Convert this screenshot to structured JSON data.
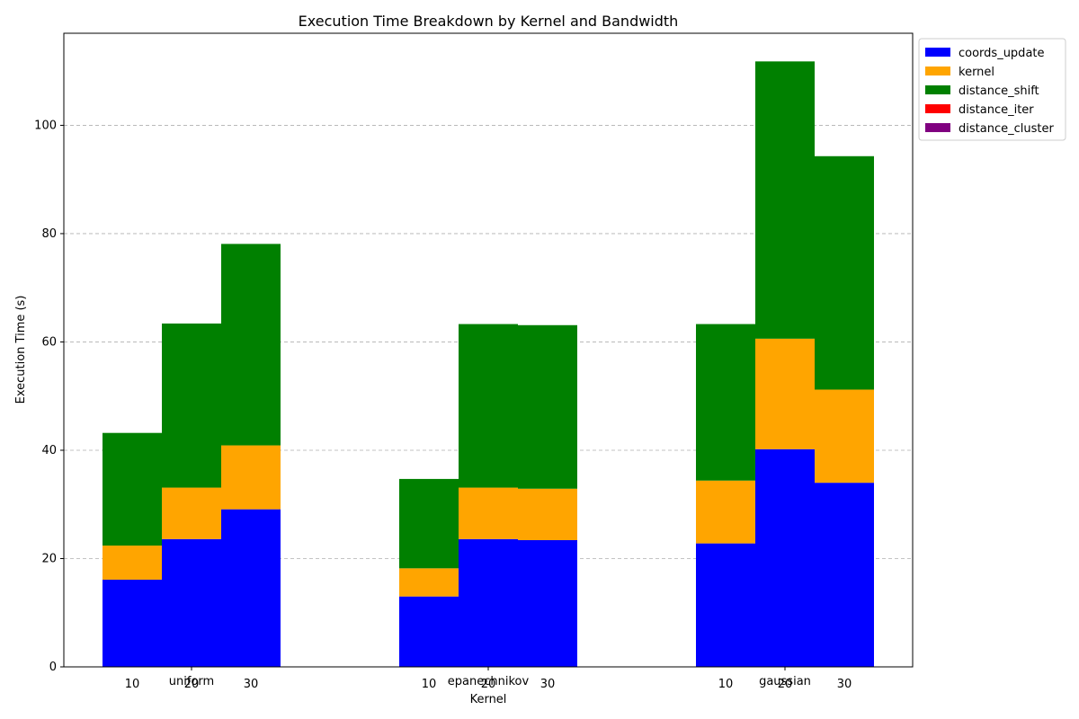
{
  "chart_data": {
    "type": "bar",
    "stacked": true,
    "title": "Execution Time Breakdown by Kernel and Bandwidth",
    "xlabel": "Kernel",
    "ylabel": "Execution Time (s)",
    "ylim": [
      0,
      117
    ],
    "yticks": [
      0,
      20,
      40,
      60,
      80,
      100
    ],
    "grid": "y-dashed",
    "legend_position": "outside-top-right",
    "groups": [
      "uniform",
      "epanechnikov",
      "gaussian"
    ],
    "bandwidths": [
      "10",
      "20",
      "30"
    ],
    "series": [
      {
        "name": "coords_update",
        "color": "#0000ff",
        "values": [
          [
            16.1,
            23.6,
            29.1
          ],
          [
            13.0,
            23.6,
            23.4
          ],
          [
            22.8,
            40.2,
            34.0
          ]
        ]
      },
      {
        "name": "kernel",
        "color": "#ffa500",
        "values": [
          [
            6.3,
            9.5,
            11.8
          ],
          [
            5.2,
            9.5,
            9.5
          ],
          [
            11.6,
            20.4,
            17.2
          ]
        ]
      },
      {
        "name": "distance_shift",
        "color": "#008000",
        "values": [
          [
            20.8,
            30.3,
            37.2
          ],
          [
            16.5,
            30.2,
            30.2
          ],
          [
            28.9,
            51.2,
            43.1
          ]
        ]
      },
      {
        "name": "distance_iter",
        "color": "#ff0000",
        "values": [
          [
            0,
            0,
            0
          ],
          [
            0,
            0,
            0
          ],
          [
            0,
            0,
            0
          ]
        ]
      },
      {
        "name": "distance_cluster",
        "color": "#800080",
        "values": [
          [
            0,
            0,
            0
          ],
          [
            0,
            0,
            0
          ],
          [
            0,
            0,
            0
          ]
        ]
      }
    ]
  }
}
